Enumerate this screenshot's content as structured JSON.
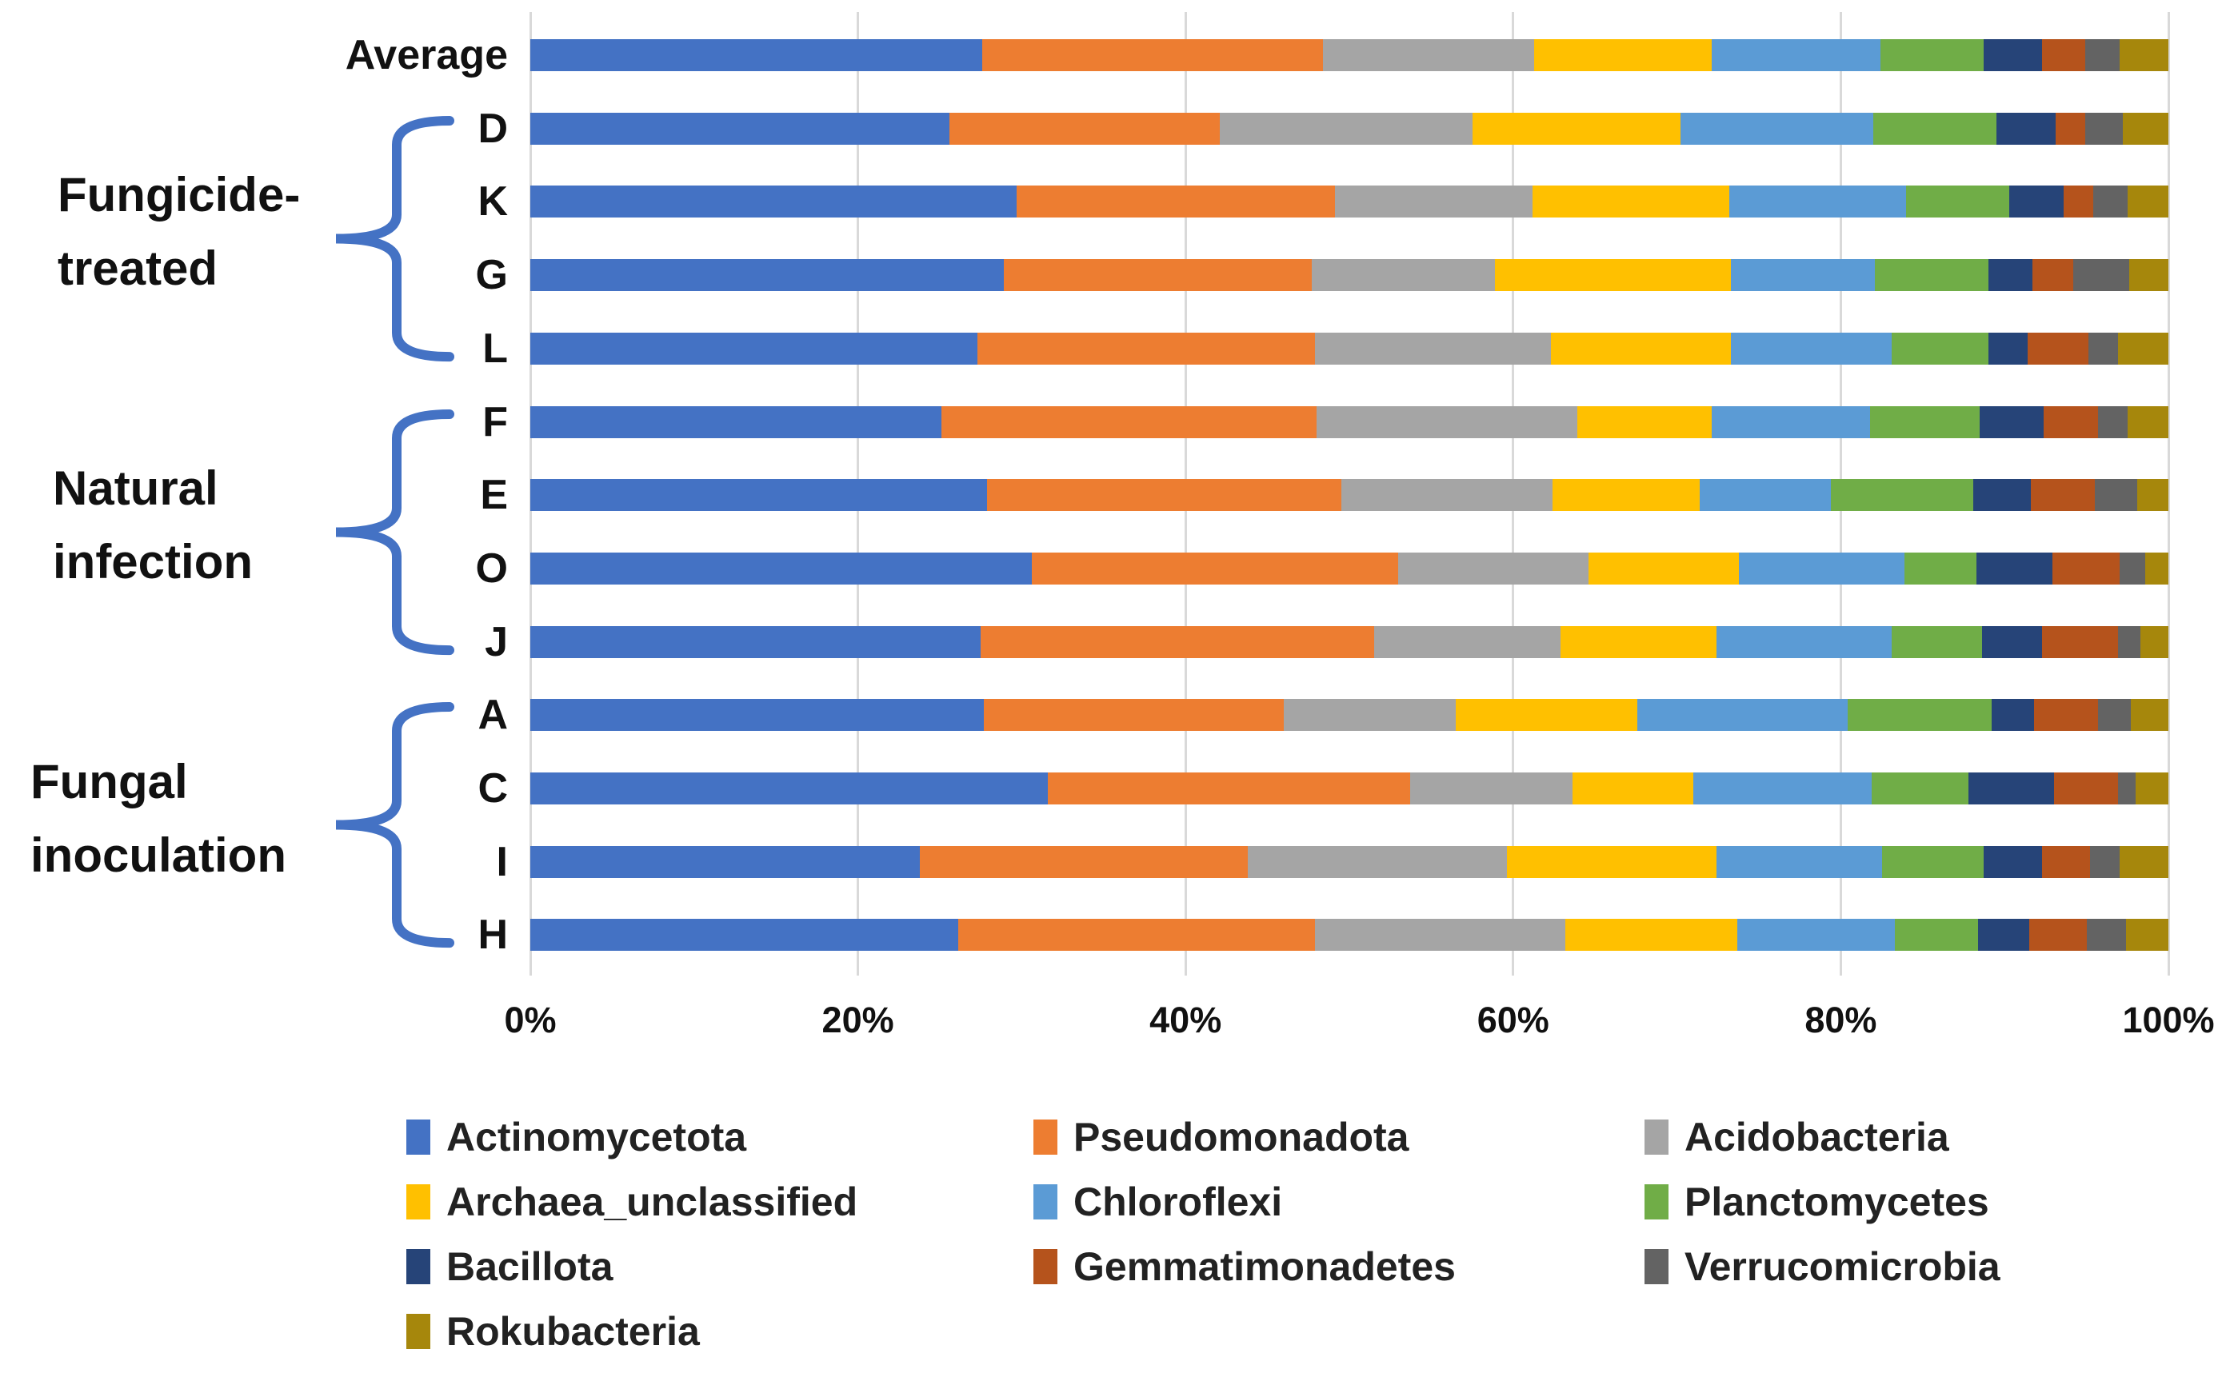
{
  "chart_data": {
    "type": "bar",
    "subtype": "horizontal-stacked-100",
    "title": "",
    "xlabel": "",
    "ylabel": "",
    "x_axis": {
      "ticks": [
        "0%",
        "20%",
        "40%",
        "60%",
        "80%",
        "100%"
      ],
      "tick_values": [
        0,
        20,
        40,
        60,
        80,
        100
      ],
      "range": [
        0,
        100
      ],
      "grid": true,
      "gridline_color": "#d9d9d9"
    },
    "series": [
      {
        "name": "Actinomycetota",
        "color": "#4472C4"
      },
      {
        "name": "Pseudomonadota",
        "color": "#ED7D31"
      },
      {
        "name": "Acidobacteria",
        "color": "#A5A5A5"
      },
      {
        "name": "Archaea_unclassified",
        "color": "#FFC000"
      },
      {
        "name": "Chloroflexi",
        "color": "#5B9BD5"
      },
      {
        "name": "Planctomycetes",
        "color": "#70AD47"
      },
      {
        "name": "Bacillota",
        "color": "#264478"
      },
      {
        "name": "Gemmatimonadetes",
        "color": "#B5531C"
      },
      {
        "name": "Verrucomicrobia",
        "color": "#636363"
      },
      {
        "name": "Rokubacteria",
        "color": "#A6870C"
      }
    ],
    "rows": [
      {
        "label": "Average",
        "values": [
          27.6,
          20.8,
          12.9,
          10.8,
          10.3,
          6.3,
          3.6,
          2.6,
          2.1,
          3.0
        ]
      },
      {
        "label": "D",
        "values": [
          25.6,
          16.5,
          15.4,
          12.7,
          11.8,
          7.5,
          3.6,
          1.8,
          2.3,
          2.8
        ]
      },
      {
        "label": "K",
        "values": [
          29.7,
          19.4,
          12.1,
          12.0,
          10.8,
          6.3,
          3.3,
          1.8,
          2.1,
          2.5
        ]
      },
      {
        "label": "G",
        "values": [
          28.9,
          18.8,
          11.2,
          14.4,
          8.8,
          6.9,
          2.7,
          2.5,
          3.4,
          2.4
        ]
      },
      {
        "label": "L",
        "values": [
          27.3,
          20.6,
          14.4,
          11.0,
          9.8,
          5.9,
          2.4,
          3.7,
          1.8,
          3.1
        ]
      },
      {
        "label": "F",
        "values": [
          25.1,
          22.9,
          15.9,
          8.2,
          9.7,
          6.7,
          3.9,
          3.3,
          1.8,
          2.5
        ]
      },
      {
        "label": "E",
        "values": [
          27.9,
          21.6,
          12.9,
          9.0,
          8.0,
          8.7,
          3.5,
          3.9,
          2.6,
          1.9
        ]
      },
      {
        "label": "O",
        "values": [
          30.6,
          22.4,
          11.6,
          9.2,
          10.1,
          4.4,
          4.6,
          4.1,
          1.6,
          1.4
        ]
      },
      {
        "label": "J",
        "values": [
          27.5,
          24.0,
          11.4,
          9.5,
          10.7,
          5.5,
          3.7,
          4.6,
          1.4,
          1.7
        ]
      },
      {
        "label": "A",
        "values": [
          27.7,
          18.3,
          10.5,
          11.1,
          12.8,
          8.8,
          2.6,
          3.9,
          2.0,
          2.3
        ]
      },
      {
        "label": "C",
        "values": [
          31.6,
          22.1,
          9.9,
          7.4,
          10.9,
          5.9,
          5.2,
          3.9,
          1.1,
          2.0
        ]
      },
      {
        "label": "I",
        "values": [
          23.8,
          20.0,
          15.8,
          12.8,
          10.1,
          6.2,
          3.6,
          2.9,
          1.8,
          3.0
        ]
      },
      {
        "label": "H",
        "values": [
          26.1,
          21.8,
          15.3,
          10.5,
          9.6,
          5.1,
          3.1,
          3.5,
          2.4,
          2.6
        ]
      }
    ],
    "groups": [
      {
        "label_lines": [
          "Fungicide-",
          "treated"
        ],
        "first_row": 1,
        "last_row": 4
      },
      {
        "label_lines": [
          "Natural",
          "infection"
        ],
        "first_row": 5,
        "last_row": 8
      },
      {
        "label_lines": [
          "Fungal",
          "inoculation"
        ],
        "first_row": 9,
        "last_row": 12
      }
    ],
    "brace_color": "#4472C4",
    "legend": {
      "position": "bottom",
      "columns": 3,
      "entries": [
        "Actinomycetota",
        "Pseudomonadota",
        "Acidobacteria",
        "Archaea_unclassified",
        "Chloroflexi",
        "Planctomycetes",
        "Bacillota",
        "Gemmatimonadetes",
        "Verrucomicrobia",
        "Rokubacteria"
      ]
    }
  }
}
